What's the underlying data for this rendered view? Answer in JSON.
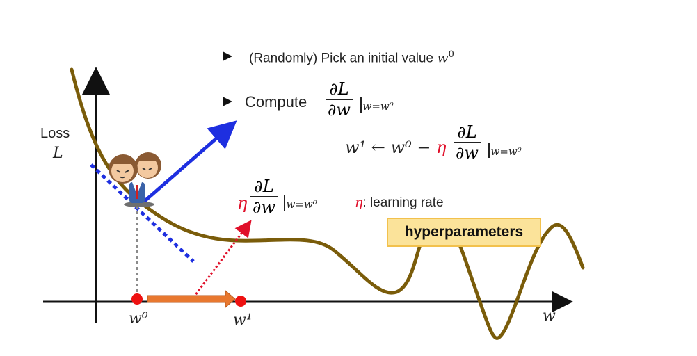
{
  "bullets": {
    "pick_prefix": "(Randomly) Pick an initial value",
    "pick_var": "w",
    "pick_sup": "0",
    "compute_label": "Compute"
  },
  "derivative": {
    "numerator": "∂L",
    "denominator": "∂w",
    "eval_subscript": "w=w⁰"
  },
  "update_rule": {
    "lhs": "w¹ ← w⁰ − ",
    "eta": "η"
  },
  "step_label": {
    "eta": "η"
  },
  "learning_rate": {
    "eta": "η",
    "text": ": learning rate"
  },
  "hyperparameters_label": "hyperparameters",
  "axes": {
    "y_label_line1": "Loss",
    "y_label_line2": "L",
    "x_label": "w",
    "w0_label": "w⁰",
    "w1_label": "w¹"
  },
  "colors": {
    "curve": "#7a5c0a",
    "tangent": "#1e2fe0",
    "step_arrow": "#e8782f",
    "points": "#ee1111",
    "highlight_box": "#fbe39a"
  }
}
